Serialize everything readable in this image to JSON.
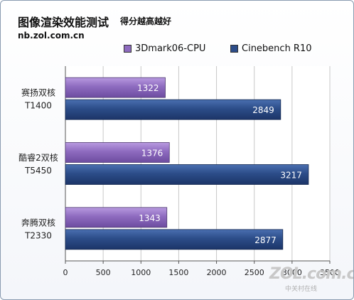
{
  "header": {
    "title": "图像渲染效能测试",
    "subtitle": "得分越高越好",
    "site": "nb.zol.com.cn"
  },
  "watermark": {
    "logo": "ZOL.com.cn",
    "text": "中关村在线"
  },
  "colors": {
    "series1": "#8e6bbf",
    "series2": "#2c4d89",
    "border": "#8a9bb0"
  },
  "chart_data": {
    "type": "bar",
    "orientation": "horizontal",
    "categories": [
      [
        "赛扬双核",
        "T1400"
      ],
      [
        "酷睿2双核",
        "T5450"
      ],
      [
        "奔腾双核",
        "T2330"
      ]
    ],
    "series": [
      {
        "name": "3Dmark06-CPU",
        "values": [
          1322,
          1376,
          1343
        ]
      },
      {
        "name": "Cinebench R10",
        "values": [
          2849,
          3217,
          2877
        ]
      }
    ],
    "xlim": [
      0,
      3500
    ],
    "xticks": [
      "0",
      "500",
      "1000",
      "1500",
      "2000",
      "2500",
      "3000",
      "3500"
    ],
    "grid": true,
    "legend": "top"
  }
}
